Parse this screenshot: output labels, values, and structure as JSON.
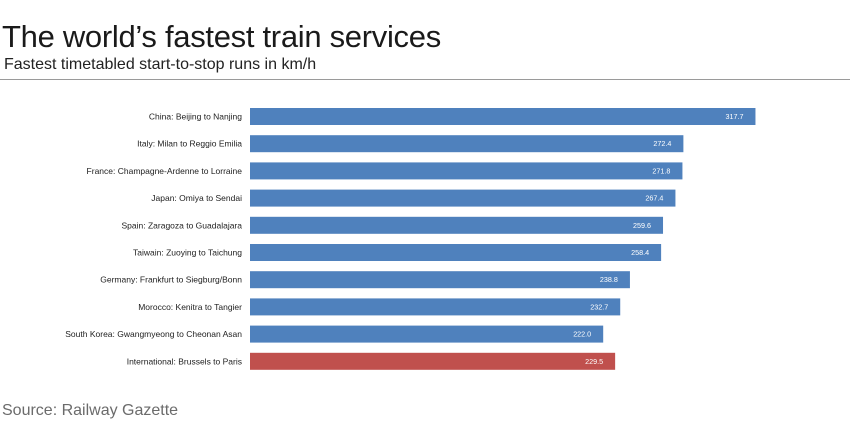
{
  "header": {
    "title": "The world’s fastest train services",
    "subtitle": "Fastest timetabled start-to-stop runs in km/h"
  },
  "footer": {
    "source": "Source: Railway Gazette"
  },
  "colors": {
    "bar_default": "#4f81bd",
    "bar_highlight": "#c0504d"
  },
  "chart_data": {
    "type": "bar",
    "orientation": "horizontal",
    "title": "The world’s fastest train services",
    "subtitle": "Fastest timetabled start-to-stop runs in km/h",
    "xlabel": "",
    "ylabel": "",
    "xlim": [
      0,
      325
    ],
    "grid": false,
    "categories": [
      "China: Beijing to Nanjing",
      "Italy: Milan to Reggio Emilia",
      "France: Champagne-Ardenne to Lorraine",
      "Japan: Omiya to Sendai",
      "Spain: Zaragoza to Guadalajara",
      "Taiwain: Zuoying to Taichung",
      "Germany: Frankfurt to Siegburg/Bonn",
      "Morocco: Kenitra to Tangier",
      "South Korea: Gwangmyeong to Cheonan Asan",
      "International: Brussels to Paris"
    ],
    "values": [
      317.7,
      272.4,
      271.8,
      267.4,
      259.6,
      258.4,
      238.8,
      232.7,
      222.0,
      229.5
    ],
    "value_labels": [
      "317.7",
      "272.4",
      "271.8",
      "267.4",
      "259.6",
      "258.4",
      "238.8",
      "232.7",
      "222.0",
      "229.5"
    ],
    "highlight": [
      "International: Brussels to Paris"
    ]
  }
}
